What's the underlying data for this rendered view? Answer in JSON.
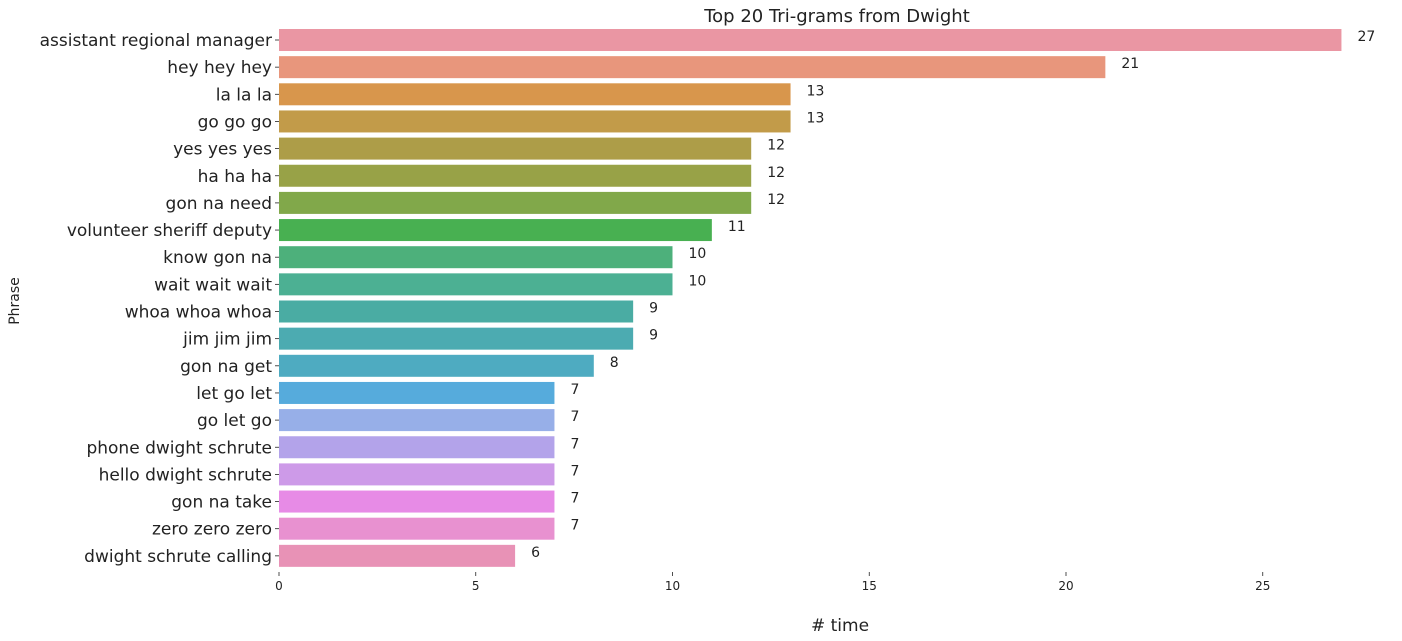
{
  "chart_data": {
    "type": "bar",
    "orientation": "horizontal",
    "title": "Top 20 Tri-grams from Dwight",
    "xlabel": "# time",
    "ylabel": "Phrase",
    "xlim": [
      0,
      27.5
    ],
    "xticks": [
      "0",
      "5",
      "10",
      "15",
      "20",
      "25"
    ],
    "grid": false,
    "categories": [
      "assistant regional manager",
      "hey hey hey",
      "la la la",
      "go go go",
      "yes yes yes",
      "ha ha ha",
      "gon na need",
      "volunteer sheriff deputy",
      "know gon na",
      "wait wait wait",
      "whoa whoa whoa",
      "jim jim jim",
      "gon na get",
      "let go let",
      "go let go",
      "phone dwight schrute",
      "hello dwight schrute",
      "gon na take",
      "zero zero zero",
      "dwight schrute calling"
    ],
    "values": [
      27,
      21,
      13,
      13,
      12,
      12,
      12,
      11,
      10,
      10,
      9,
      9,
      8,
      7,
      7,
      7,
      7,
      7,
      7,
      6
    ],
    "value_labels": [
      "27",
      "21",
      "13",
      "13",
      "12",
      "12",
      "12",
      "11",
      "10",
      "10",
      "9",
      "9",
      "8",
      "7",
      "7",
      "7",
      "7",
      "7",
      "7",
      "6"
    ],
    "colors": [
      "#ea96a3",
      "#e8967c",
      "#d8964c",
      "#c29b49",
      "#ad9d48",
      "#98a247",
      "#81a84a",
      "#48b051",
      "#4db07b",
      "#4cb093",
      "#4aaca3",
      "#4cabb1",
      "#4eabc1",
      "#56abdc",
      "#97afe8",
      "#b3a3ea",
      "#cd9ae8",
      "#e78be6",
      "#e891d0",
      "#e892b6"
    ]
  }
}
